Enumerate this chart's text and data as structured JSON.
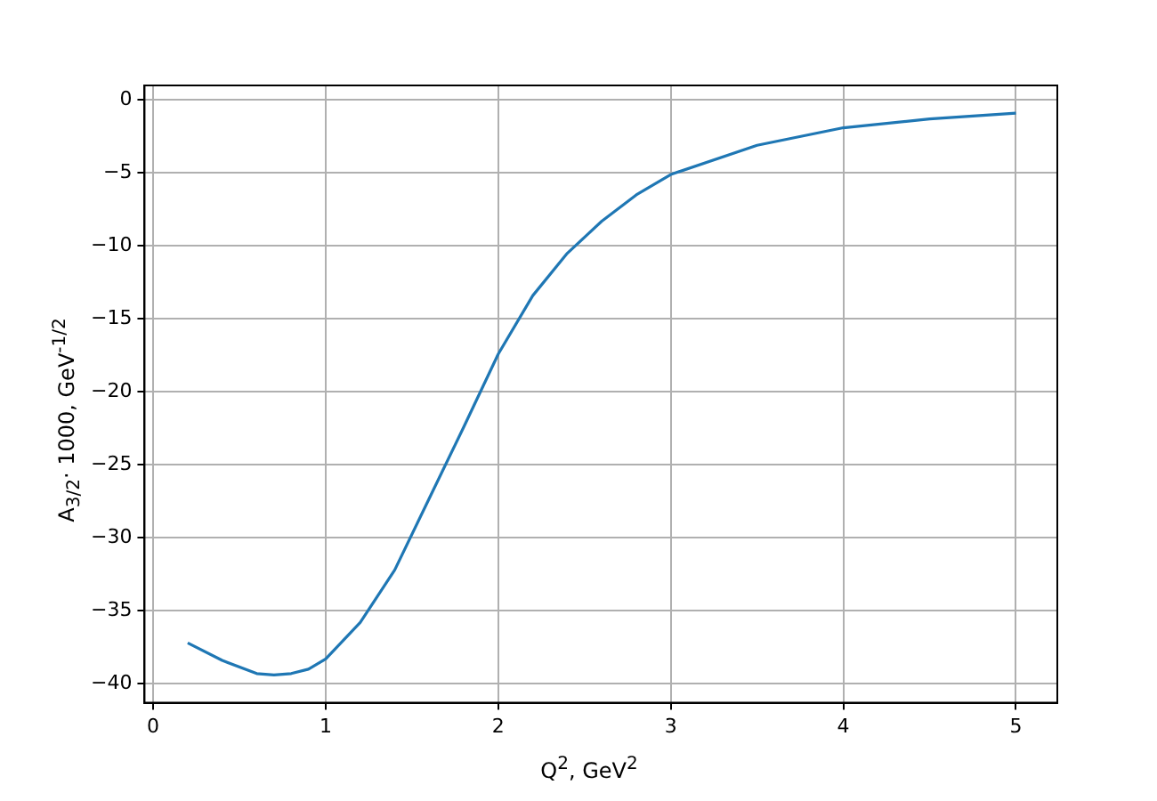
{
  "chart_data": {
    "type": "line",
    "xlabel": "Q$^{2}$, GeV$^{2}$",
    "ylabel": "A$_{3/2}$· 1000, GeV$^{-1/2}$",
    "x": [
      0.2,
      0.4,
      0.6,
      0.7,
      0.8,
      0.9,
      1.0,
      1.2,
      1.4,
      1.6,
      1.8,
      2.0,
      2.2,
      2.4,
      2.6,
      2.8,
      3.0,
      3.5,
      4.0,
      4.5,
      5.0
    ],
    "series": [
      {
        "color": "#1f77b4",
        "values": [
          -37.2,
          -38.4,
          -39.3,
          -39.4,
          -39.3,
          -39.0,
          -38.3,
          -35.8,
          -32.2,
          -27.3,
          -22.4,
          -17.4,
          -13.4,
          -10.5,
          -8.3,
          -6.5,
          -5.1,
          -3.1,
          -1.9,
          -1.3,
          -0.9
        ]
      }
    ],
    "xlim": [
      -0.05,
      5.24
    ],
    "xticks": [
      0,
      1,
      2,
      3,
      4,
      5
    ],
    "ylim": [
      -41.3,
      1
    ],
    "yticks": [
      -40,
      -35,
      -30,
      -25,
      -20,
      -15,
      -10,
      -5,
      0
    ],
    "grid": true,
    "legend": false,
    "marker": "none",
    "line_style": "solid"
  }
}
